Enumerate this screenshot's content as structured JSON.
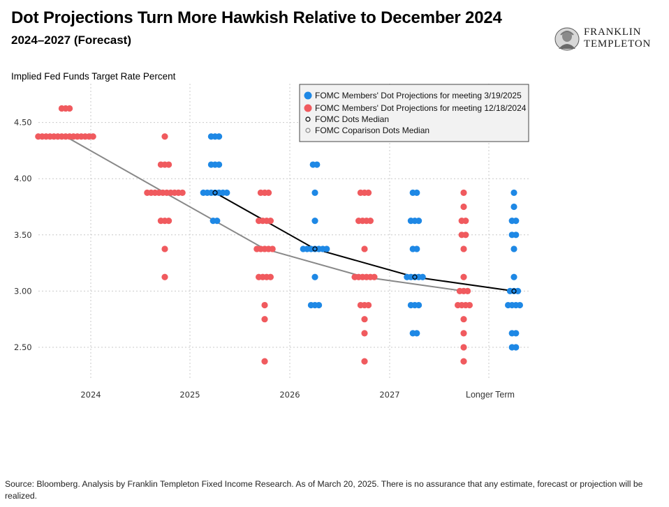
{
  "title": "Dot Projections Turn More Hawkish Relative to December 2024",
  "subtitle": "2024–2027 (Forecast)",
  "logo": {
    "line1": "FRANKLIN",
    "line2": "TEMPLETON"
  },
  "source": "Source: Bloomberg. Analysis by Franklin Templeton Fixed Income Research. As of March 20, 2025. There is no assurance that any estimate, forecast or projection will be realized.",
  "colors": {
    "march": "#1E88E5",
    "december": "#F05A5E",
    "median": "#000000",
    "comparison": "#888888"
  },
  "chart_data": {
    "type": "scatter",
    "ylabel": "Implied Fed Funds Target Rate Percent",
    "categories": [
      "2024",
      "2025",
      "2026",
      "2027",
      "Longer Term"
    ],
    "ylim": [
      2.25,
      4.75
    ],
    "yticks": [
      "2.50",
      "3.00",
      "3.50",
      "4.00",
      "4.50"
    ],
    "grid": true,
    "legend_position": "top-right",
    "series": [
      {
        "name": "FOMC Members' Dot Projections for meeting 3/19/2025",
        "kind": "dots",
        "color": "#1E88E5",
        "points": [
          {
            "category": "2025",
            "values": [
              {
                "y": 4.375,
                "count": 3
              },
              {
                "y": 4.125,
                "count": 3
              },
              {
                "y": 3.875,
                "count": 7
              },
              {
                "y": 3.625,
                "count": 2
              }
            ]
          },
          {
            "category": "2026",
            "values": [
              {
                "y": 4.125,
                "count": 2
              },
              {
                "y": 3.875,
                "count": 1
              },
              {
                "y": 3.625,
                "count": 1
              },
              {
                "y": 3.375,
                "count": 7
              },
              {
                "y": 3.125,
                "count": 1
              },
              {
                "y": 2.875,
                "count": 3
              }
            ]
          },
          {
            "category": "2027",
            "values": [
              {
                "y": 3.875,
                "count": 2
              },
              {
                "y": 3.625,
                "count": 3
              },
              {
                "y": 3.375,
                "count": 2
              },
              {
                "y": 3.125,
                "count": 5
              },
              {
                "y": 2.875,
                "count": 3
              },
              {
                "y": 2.625,
                "count": 2
              }
            ]
          },
          {
            "category": "Longer Term",
            "values": [
              {
                "y": 3.875,
                "count": 1
              },
              {
                "y": 3.75,
                "count": 1
              },
              {
                "y": 3.625,
                "count": 2
              },
              {
                "y": 3.5,
                "count": 2
              },
              {
                "y": 3.375,
                "count": 1
              },
              {
                "y": 3.125,
                "count": 1
              },
              {
                "y": 3.0,
                "count": 3
              },
              {
                "y": 2.875,
                "count": 4
              },
              {
                "y": 2.625,
                "count": 2
              },
              {
                "y": 2.5,
                "count": 2
              }
            ]
          }
        ]
      },
      {
        "name": "FOMC Members' Dot Projections for meeting 12/18/2024",
        "kind": "dots",
        "color": "#F05A5E",
        "points": [
          {
            "category": "2024",
            "values": [
              {
                "y": 4.625,
                "count": 3
              },
              {
                "y": 4.375,
                "count": 15
              }
            ]
          },
          {
            "category": "2025",
            "values": [
              {
                "y": 4.375,
                "count": 1
              },
              {
                "y": 4.125,
                "count": 3
              },
              {
                "y": 3.875,
                "count": 10
              },
              {
                "y": 3.625,
                "count": 3
              },
              {
                "y": 3.375,
                "count": 1
              },
              {
                "y": 3.125,
                "count": 1
              }
            ]
          },
          {
            "category": "2026",
            "values": [
              {
                "y": 3.875,
                "count": 3
              },
              {
                "y": 3.625,
                "count": 4
              },
              {
                "y": 3.375,
                "count": 5
              },
              {
                "y": 3.125,
                "count": 4
              },
              {
                "y": 2.875,
                "count": 1
              },
              {
                "y": 2.75,
                "count": 1
              },
              {
                "y": 2.375,
                "count": 1
              }
            ]
          },
          {
            "category": "2027",
            "values": [
              {
                "y": 3.875,
                "count": 3
              },
              {
                "y": 3.625,
                "count": 4
              },
              {
                "y": 3.375,
                "count": 1
              },
              {
                "y": 3.125,
                "count": 6
              },
              {
                "y": 2.875,
                "count": 3
              },
              {
                "y": 2.75,
                "count": 1
              },
              {
                "y": 2.625,
                "count": 1
              },
              {
                "y": 2.375,
                "count": 1
              }
            ]
          },
          {
            "category": "Longer Term",
            "values": [
              {
                "y": 3.875,
                "count": 1
              },
              {
                "y": 3.75,
                "count": 1
              },
              {
                "y": 3.625,
                "count": 2
              },
              {
                "y": 3.5,
                "count": 2
              },
              {
                "y": 3.375,
                "count": 1
              },
              {
                "y": 3.125,
                "count": 1
              },
              {
                "y": 3.0,
                "count": 3
              },
              {
                "y": 2.875,
                "count": 4
              },
              {
                "y": 2.75,
                "count": 1
              },
              {
                "y": 2.625,
                "count": 1
              },
              {
                "y": 2.5,
                "count": 1
              },
              {
                "y": 2.375,
                "count": 1
              }
            ]
          }
        ]
      },
      {
        "name": "FOMC Dots Median",
        "kind": "median",
        "color": "#000000",
        "points": [
          {
            "category": "2025",
            "y": 3.875
          },
          {
            "category": "2026",
            "y": 3.375
          },
          {
            "category": "2027",
            "y": 3.125
          },
          {
            "category": "Longer Term",
            "y": 3.0
          }
        ]
      },
      {
        "name": "FOMC Coparison Dots Median",
        "kind": "comparison",
        "color": "#888888",
        "points": [
          {
            "category": "2024",
            "y": 4.375
          },
          {
            "category": "2025",
            "y": 3.875
          },
          {
            "category": "2026",
            "y": 3.375
          },
          {
            "category": "2027",
            "y": 3.125
          },
          {
            "category": "Longer Term",
            "y": 3.0
          }
        ]
      }
    ]
  }
}
